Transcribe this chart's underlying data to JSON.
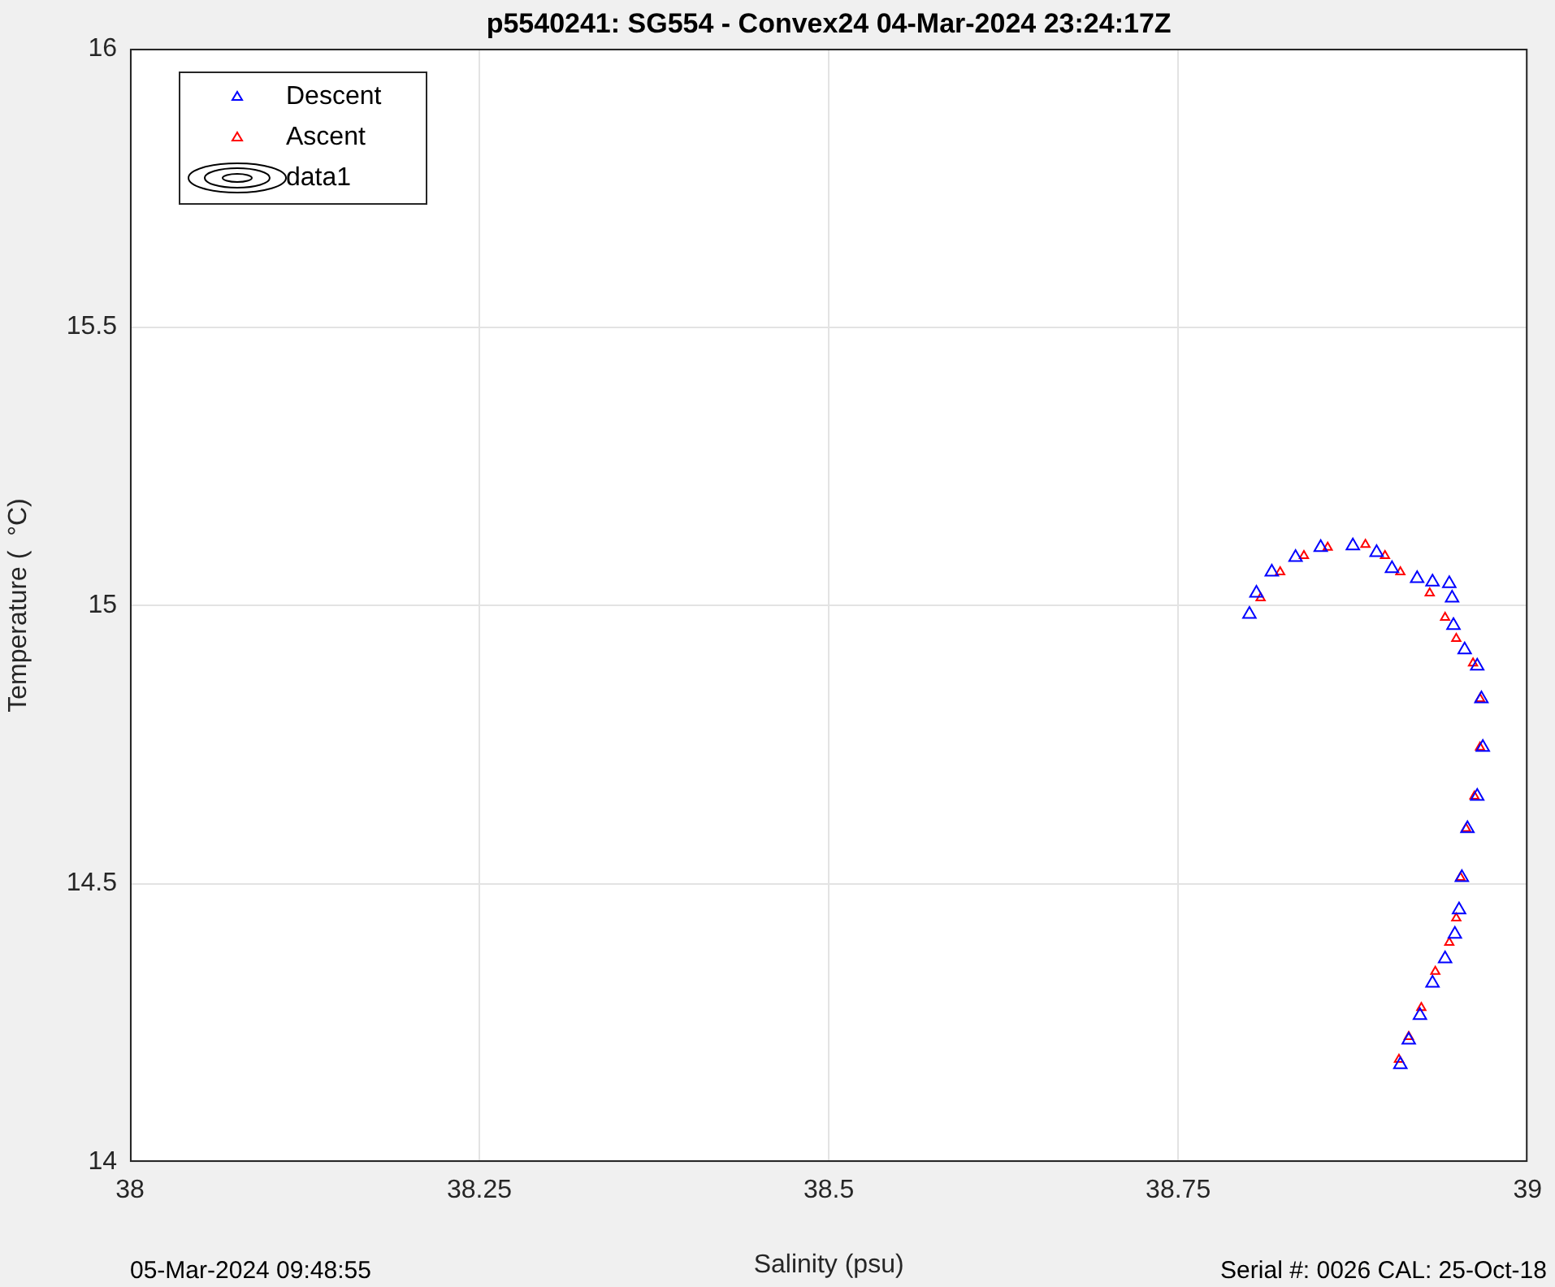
{
  "chart_data": {
    "type": "scatter",
    "title": "p5540241: SG554 - Convex24 04-Mar-2024 23:24:17Z",
    "xlabel": "Salinity (psu)",
    "ylabel": "Temperature (  °C)",
    "annotations": [
      "05-Mar-2024 09:48:55",
      "Serial #: 0026 CAL: 25-Oct-18"
    ],
    "xlim": [
      38,
      39
    ],
    "xticks": [
      38,
      38.25,
      38.5,
      38.75,
      39
    ],
    "ylim": [
      14,
      16
    ],
    "yticks": [
      14,
      14.5,
      15,
      15.5,
      16
    ],
    "grid": true,
    "legend": "top left",
    "marker": "triangle",
    "series": [
      {
        "name": "Descent",
        "color": "#0000ff",
        "x": [
          38.801,
          38.806,
          38.817,
          38.834,
          38.852,
          38.875,
          38.892,
          38.903,
          38.921,
          38.932,
          38.944,
          38.946,
          38.947,
          38.955,
          38.964,
          38.967,
          38.968,
          38.964,
          38.957,
          38.953,
          38.951,
          38.948,
          38.941,
          38.932,
          38.923,
          38.915,
          38.909
        ],
        "values": [
          14.984,
          15.022,
          15.06,
          15.086,
          15.104,
          15.107,
          15.095,
          15.066,
          15.048,
          15.042,
          15.039,
          15.013,
          14.964,
          14.92,
          14.891,
          14.832,
          14.745,
          14.657,
          14.599,
          14.511,
          14.453,
          14.409,
          14.365,
          14.321,
          14.263,
          14.219,
          14.175
        ]
      },
      {
        "name": "Ascent",
        "color": "#ff0000",
        "x": [
          38.809,
          38.823,
          38.84,
          38.857,
          38.884,
          38.898,
          38.909,
          38.93,
          38.941,
          38.949,
          38.961,
          38.966,
          38.966,
          38.962,
          38.956,
          38.952,
          38.949,
          38.944,
          38.934,
          38.924,
          38.915,
          38.908
        ],
        "values": [
          15.013,
          15.06,
          15.089,
          15.104,
          15.109,
          15.089,
          15.06,
          15.022,
          14.978,
          14.94,
          14.896,
          14.832,
          14.745,
          14.657,
          14.599,
          14.511,
          14.438,
          14.394,
          14.342,
          14.277,
          14.225,
          14.184
        ]
      },
      {
        "name": "data1",
        "type": "other",
        "color": "#000000"
      }
    ]
  }
}
